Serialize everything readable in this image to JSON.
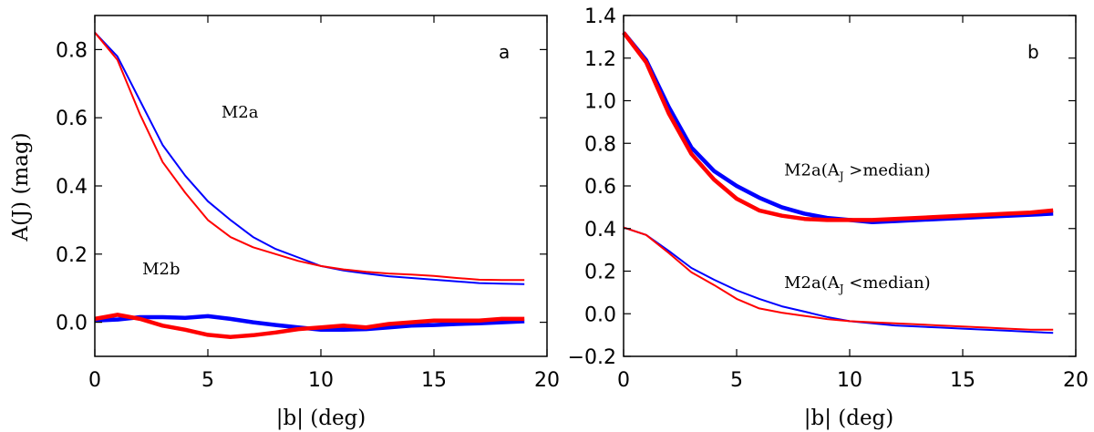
{
  "chart_data": [
    {
      "type": "line",
      "panel_label": "a",
      "xlabel": "|b| (deg)",
      "ylabel": "A(J) (mag)",
      "xlim": [
        0,
        20
      ],
      "ylim": [
        -0.1,
        0.9
      ],
      "xticks": [
        0,
        5,
        10,
        15,
        20
      ],
      "yticks": [
        0.0,
        0.2,
        0.4,
        0.6,
        0.8
      ],
      "xtick_labels": [
        "0",
        "5",
        "10",
        "15",
        "20"
      ],
      "ytick_labels": [
        "0.0",
        "0.2",
        "0.4",
        "0.6",
        "0.8"
      ],
      "annotations": [
        {
          "text": "M2a",
          "x": 5.6,
          "y": 0.6
        },
        {
          "text": "M2b",
          "x": 2.1,
          "y": 0.14
        }
      ],
      "series": [
        {
          "name": "M2a blue",
          "color": "#0000ff",
          "weight": "thin",
          "x": [
            0,
            1,
            2,
            3,
            4,
            5,
            6,
            7,
            8,
            9,
            10,
            11,
            12,
            13,
            14,
            15,
            16,
            17,
            18,
            19
          ],
          "values": [
            0.85,
            0.78,
            0.65,
            0.52,
            0.43,
            0.355,
            0.3,
            0.25,
            0.215,
            0.19,
            0.165,
            0.152,
            0.143,
            0.135,
            0.13,
            0.125,
            0.12,
            0.115,
            0.113,
            0.112
          ]
        },
        {
          "name": "M2a red",
          "color": "#ff0000",
          "weight": "thin",
          "x": [
            0,
            1,
            2,
            3,
            4,
            5,
            6,
            7,
            8,
            9,
            10,
            11,
            12,
            13,
            14,
            15,
            16,
            17,
            18,
            19
          ],
          "values": [
            0.85,
            0.77,
            0.61,
            0.47,
            0.38,
            0.3,
            0.25,
            0.22,
            0.2,
            0.18,
            0.165,
            0.155,
            0.148,
            0.143,
            0.14,
            0.136,
            0.13,
            0.125,
            0.124,
            0.124
          ]
        },
        {
          "name": "M2b blue",
          "color": "#0000ff",
          "weight": "thick",
          "x": [
            0,
            1,
            2,
            3,
            4,
            5,
            6,
            7,
            8,
            9,
            10,
            11,
            12,
            13,
            14,
            15,
            16,
            17,
            18,
            19
          ],
          "values": [
            0.005,
            0.008,
            0.015,
            0.015,
            0.013,
            0.018,
            0.01,
            0.0,
            -0.008,
            -0.015,
            -0.022,
            -0.022,
            -0.02,
            -0.015,
            -0.01,
            -0.008,
            -0.005,
            -0.003,
            0.0,
            0.003
          ]
        },
        {
          "name": "M2b red",
          "color": "#ff0000",
          "weight": "thick",
          "x": [
            0,
            1,
            2,
            3,
            4,
            5,
            6,
            7,
            8,
            9,
            10,
            11,
            12,
            13,
            14,
            15,
            16,
            17,
            18,
            19
          ],
          "values": [
            0.01,
            0.022,
            0.01,
            -0.01,
            -0.022,
            -0.037,
            -0.043,
            -0.038,
            -0.03,
            -0.02,
            -0.015,
            -0.01,
            -0.015,
            -0.005,
            0.0,
            0.005,
            0.005,
            0.005,
            0.01,
            0.01
          ]
        }
      ]
    },
    {
      "type": "line",
      "panel_label": "b",
      "xlabel": "|b| (deg)",
      "ylabel": "",
      "xlim": [
        0,
        20
      ],
      "ylim": [
        -0.2,
        1.4
      ],
      "xticks": [
        0,
        5,
        10,
        15,
        20
      ],
      "yticks": [
        -0.2,
        0.0,
        0.2,
        0.4,
        0.6,
        0.8,
        1.0,
        1.2,
        1.4
      ],
      "xtick_labels": [
        "0",
        "5",
        "10",
        "15",
        "20"
      ],
      "ytick_labels": [
        "−0.2",
        "0.0",
        "0.2",
        "0.4",
        "0.6",
        "0.8",
        "1.0",
        "1.2",
        "1.4"
      ],
      "annotations": [
        {
          "text": "M2a(A",
          "sub": "J",
          "tail": " >median)",
          "x": 7.1,
          "y": 0.65
        },
        {
          "text": "M2a(A",
          "sub": "J",
          "tail": " <median)",
          "x": 7.1,
          "y": 0.12
        }
      ],
      "series": [
        {
          "name": "M2a (A_J > median) blue",
          "color": "#0000ff",
          "weight": "thick",
          "x": [
            0,
            1,
            2,
            3,
            4,
            5,
            6,
            7,
            8,
            9,
            10,
            11,
            12,
            13,
            14,
            15,
            16,
            17,
            18,
            19
          ],
          "values": [
            1.32,
            1.19,
            0.97,
            0.78,
            0.67,
            0.6,
            0.545,
            0.5,
            0.47,
            0.45,
            0.44,
            0.43,
            0.435,
            0.44,
            0.445,
            0.45,
            0.455,
            0.46,
            0.465,
            0.47
          ]
        },
        {
          "name": "M2a (A_J > median) red",
          "color": "#ff0000",
          "weight": "thick",
          "x": [
            0,
            1,
            2,
            3,
            4,
            5,
            6,
            7,
            8,
            9,
            10,
            11,
            12,
            13,
            14,
            15,
            16,
            17,
            18,
            19
          ],
          "values": [
            1.32,
            1.18,
            0.94,
            0.75,
            0.63,
            0.54,
            0.485,
            0.46,
            0.445,
            0.44,
            0.44,
            0.44,
            0.445,
            0.45,
            0.455,
            0.46,
            0.465,
            0.47,
            0.475,
            0.485
          ]
        },
        {
          "name": "M2a (A_J < median) blue",
          "color": "#0000ff",
          "weight": "thin",
          "x": [
            0,
            1,
            2,
            3,
            4,
            5,
            6,
            7,
            8,
            9,
            10,
            11,
            12,
            13,
            14,
            15,
            16,
            17,
            18,
            19
          ],
          "values": [
            0.405,
            0.37,
            0.295,
            0.215,
            0.16,
            0.11,
            0.07,
            0.035,
            0.01,
            -0.015,
            -0.035,
            -0.045,
            -0.055,
            -0.06,
            -0.065,
            -0.07,
            -0.075,
            -0.08,
            -0.085,
            -0.09
          ]
        },
        {
          "name": "M2a (A_J < median) red",
          "color": "#ff0000",
          "weight": "thin",
          "x": [
            0,
            1,
            2,
            3,
            4,
            5,
            6,
            7,
            8,
            9,
            10,
            11,
            12,
            13,
            14,
            15,
            16,
            17,
            18,
            19
          ],
          "values": [
            0.405,
            0.37,
            0.285,
            0.195,
            0.135,
            0.07,
            0.025,
            0.005,
            -0.01,
            -0.025,
            -0.035,
            -0.04,
            -0.045,
            -0.05,
            -0.055,
            -0.06,
            -0.065,
            -0.07,
            -0.075,
            -0.075
          ]
        }
      ]
    }
  ]
}
